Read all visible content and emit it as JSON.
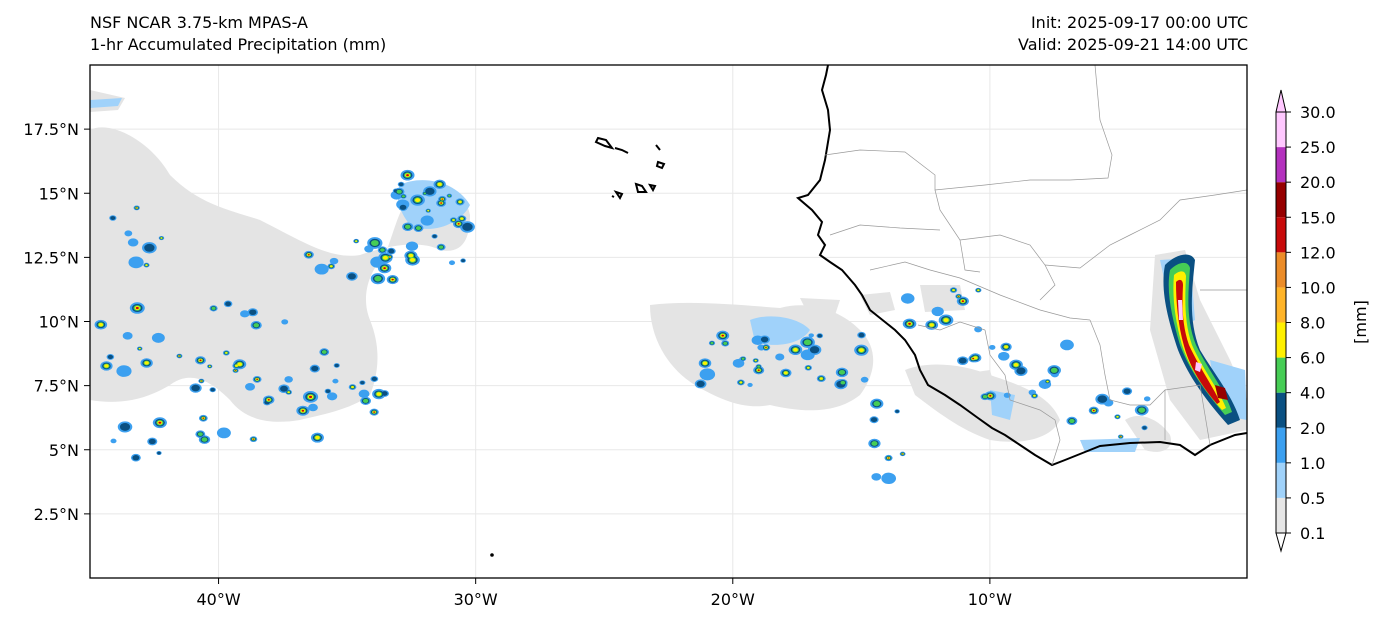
{
  "header": {
    "model": "NSF NCAR 3.75-km MPAS-A",
    "field": "1-hr Accumulated Precipitation (mm)",
    "init": "Init: 2025-09-17 00:00 UTC",
    "valid": "Valid: 2025-09-21 14:00 UTC"
  },
  "axes": {
    "lon_ticks": [
      {
        "value": -40,
        "label": "40°W"
      },
      {
        "value": -30,
        "label": "30°W"
      },
      {
        "value": -20,
        "label": "20°W"
      },
      {
        "value": -10,
        "label": "10°W"
      }
    ],
    "lat_ticks": [
      {
        "value": 2.5,
        "label": "2.5°N"
      },
      {
        "value": 5,
        "label": "5°N"
      },
      {
        "value": 7.5,
        "label": "7.5°N"
      },
      {
        "value": 10,
        "label": "10°N"
      },
      {
        "value": 12.5,
        "label": "12.5°N"
      },
      {
        "value": 15,
        "label": "15°N"
      },
      {
        "value": 17.5,
        "label": "17.5°N"
      }
    ],
    "lon_range": [
      -45,
      0
    ],
    "lat_range": [
      0,
      20
    ]
  },
  "colorbar": {
    "unit_label": "[mm]",
    "levels": [
      "0.1",
      "0.5",
      "1.0",
      "2.0",
      "4.0",
      "6.0",
      "8.0",
      "10.0",
      "12.0",
      "15.0",
      "20.0",
      "25.0",
      "30.0"
    ],
    "colors": [
      "#e6e6e6",
      "#a0d2fa",
      "#3ca0f0",
      "#0a5082",
      "#46cd55",
      "#fff000",
      "#ffb428",
      "#eb8c28",
      "#c80a0a",
      "#960000",
      "#b432be",
      "#ffc8ff"
    ]
  }
}
